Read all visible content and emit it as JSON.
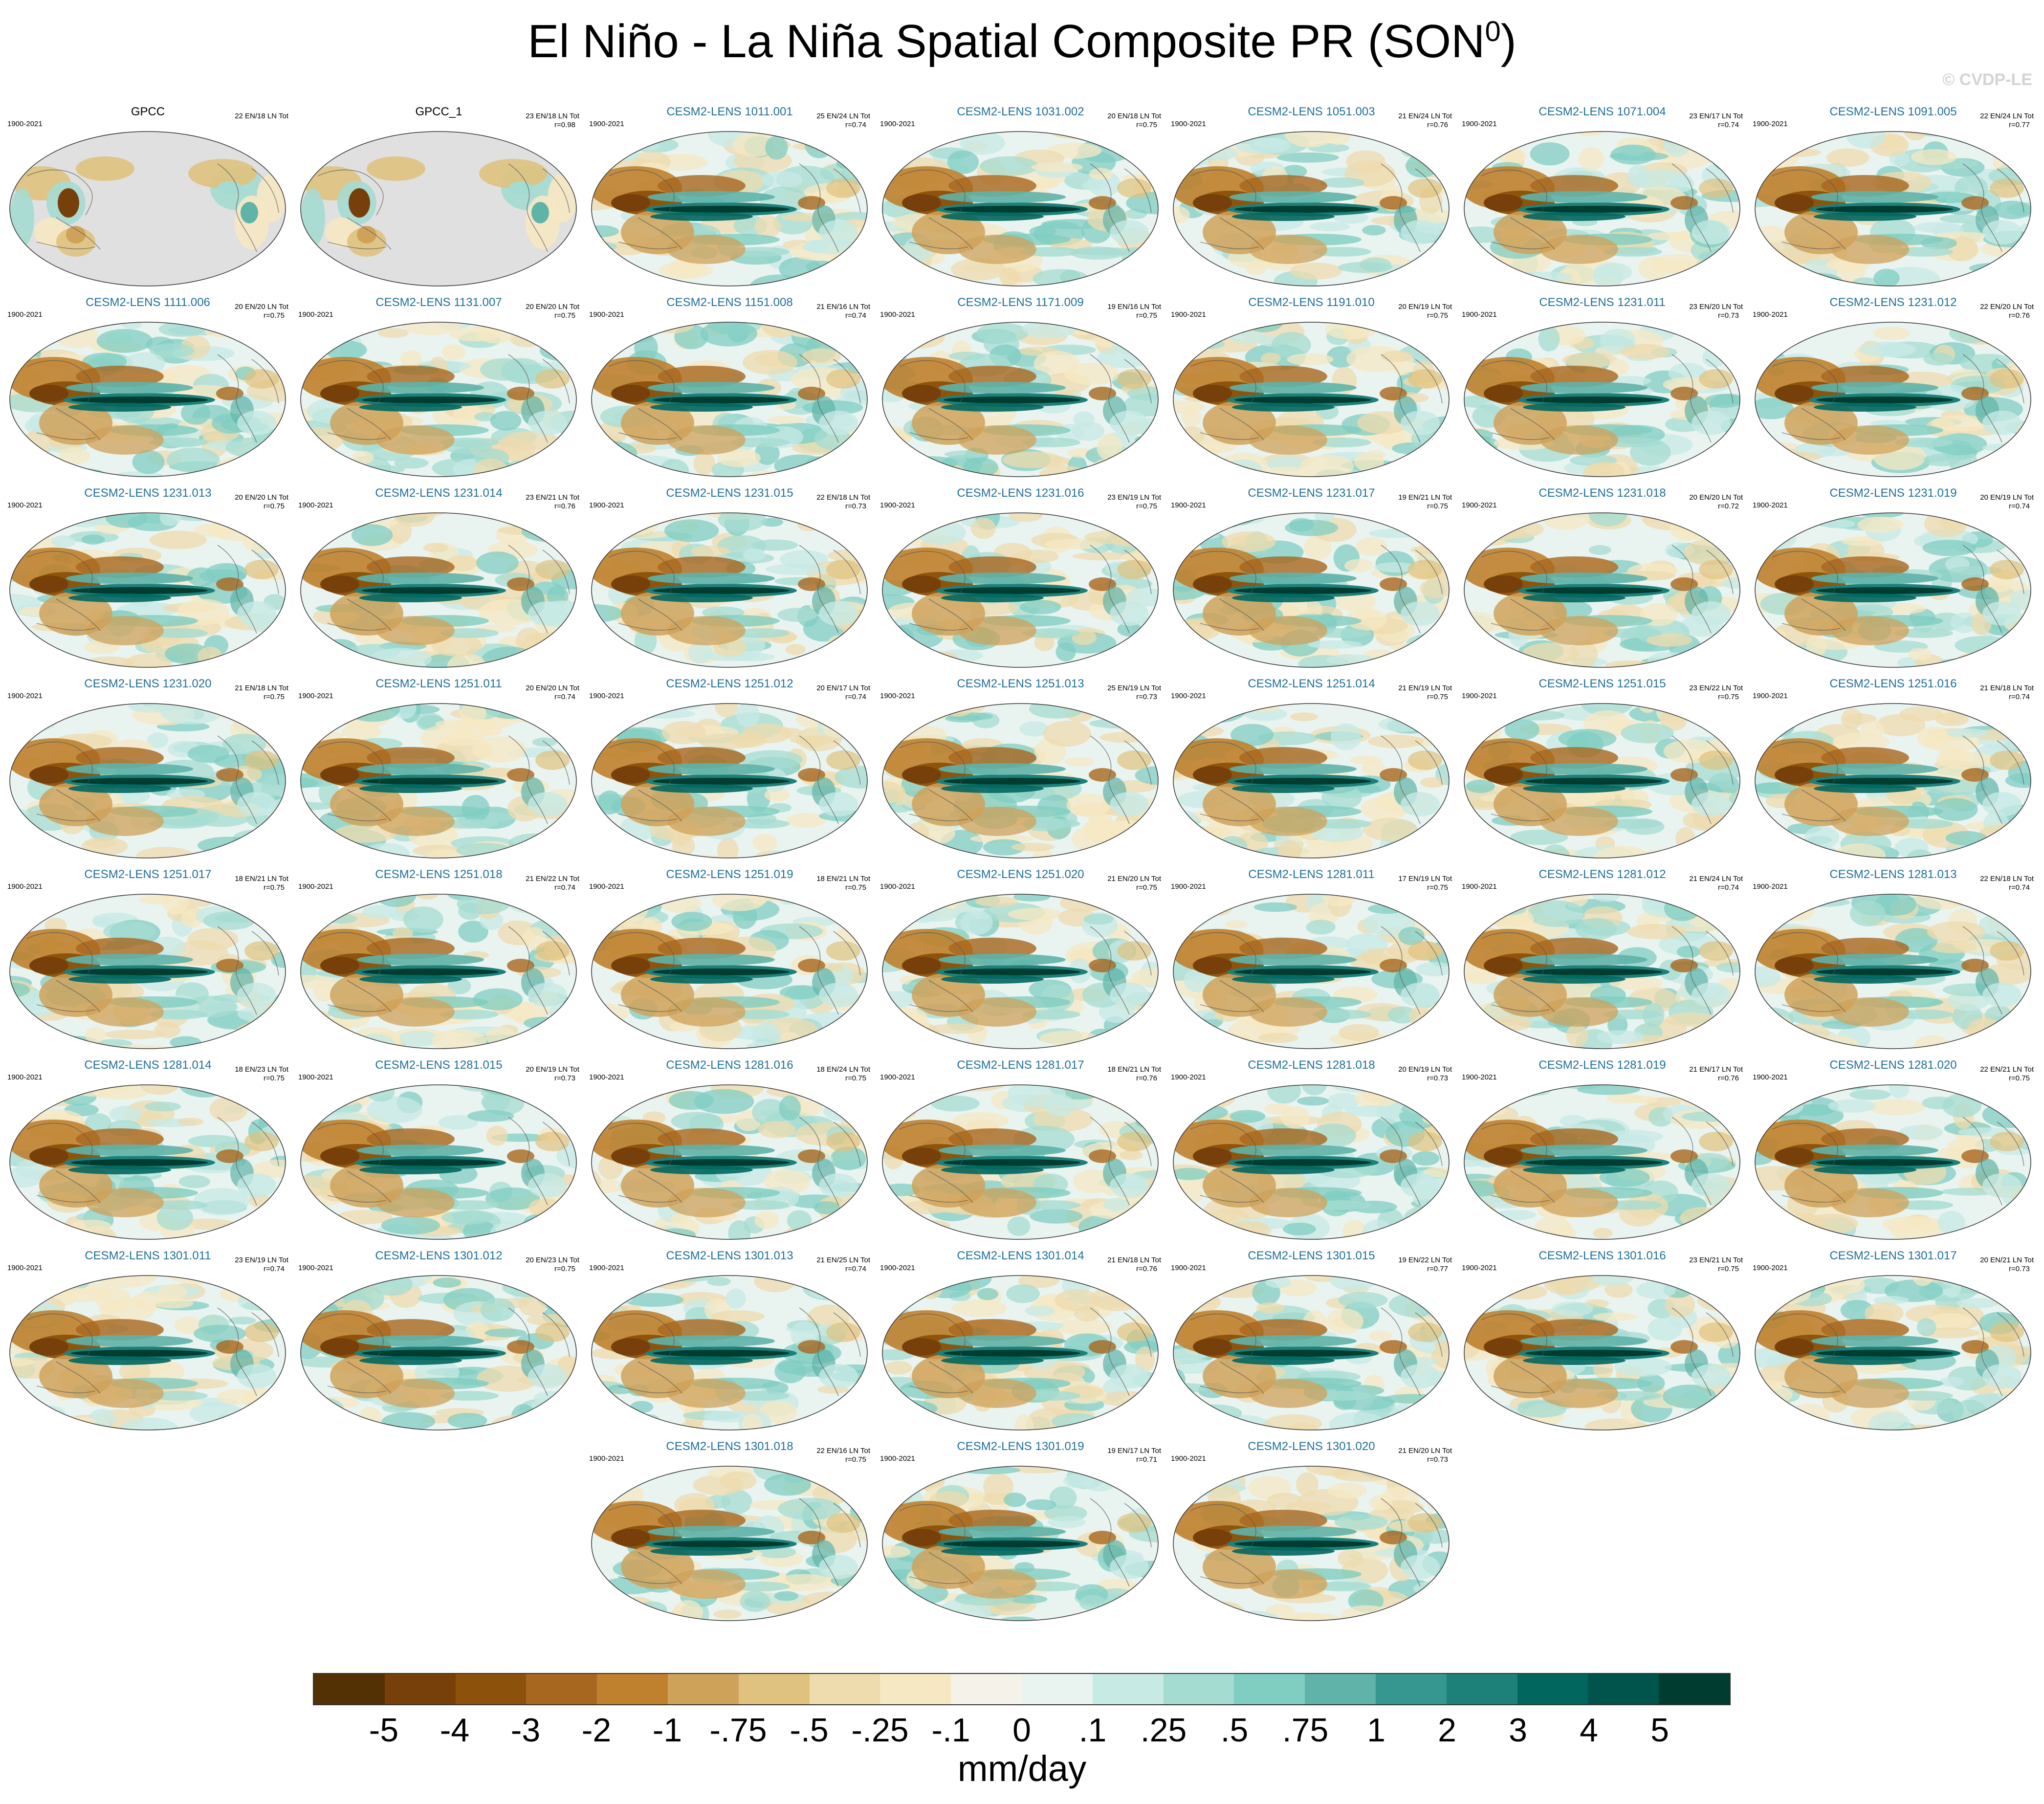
{
  "figure": {
    "title_main": "El Niño - La Niña Spatial Composite PR (SON",
    "title_sup": "0",
    "title_close": ")",
    "credit": "© CVDP-LE",
    "units": "mm/day"
  },
  "colors": {
    "model_label": "#1f6f9a",
    "obs_label": "#000000",
    "ocean_blank": "#e0e0e0",
    "coast": "#555555"
  },
  "panels": [
    {
      "name": "GPCC",
      "years": "1900-2021",
      "count": "22 EN/18 LN Tot",
      "corr": "",
      "type": "obs"
    },
    {
      "name": "GPCC_1",
      "years": "",
      "count": "23 EN/18 LN Tot",
      "corr": "r=0.98",
      "type": "obs"
    },
    {
      "name": "CESM2-LENS 1011.001",
      "years": "1900-2021",
      "count": "25 EN/24 LN Tot",
      "corr": "r=0.74",
      "type": "model"
    },
    {
      "name": "CESM2-LENS 1031.002",
      "years": "1900-2021",
      "count": "20 EN/18 LN Tot",
      "corr": "r=0.75",
      "type": "model"
    },
    {
      "name": "CESM2-LENS 1051.003",
      "years": "1900-2021",
      "count": "21 EN/24 LN Tot",
      "corr": "r=0.76",
      "type": "model"
    },
    {
      "name": "CESM2-LENS 1071.004",
      "years": "1900-2021",
      "count": "23 EN/17 LN Tot",
      "corr": "r=0.74",
      "type": "model"
    },
    {
      "name": "CESM2-LENS 1091.005",
      "years": "1900-2021",
      "count": "22 EN/24 LN Tot",
      "corr": "r=0.77",
      "type": "model"
    },
    {
      "name": "CESM2-LENS 1111.006",
      "years": "1900-2021",
      "count": "20 EN/20 LN Tot",
      "corr": "r=0.75",
      "type": "model"
    },
    {
      "name": "CESM2-LENS 1131.007",
      "years": "1900-2021",
      "count": "20 EN/20 LN Tot",
      "corr": "r=0.75",
      "type": "model"
    },
    {
      "name": "CESM2-LENS 1151.008",
      "years": "1900-2021",
      "count": "21 EN/16 LN Tot",
      "corr": "r=0.74",
      "type": "model"
    },
    {
      "name": "CESM2-LENS 1171.009",
      "years": "1900-2021",
      "count": "19 EN/16 LN Tot",
      "corr": "r=0.75",
      "type": "model"
    },
    {
      "name": "CESM2-LENS 1191.010",
      "years": "1900-2021",
      "count": "20 EN/19 LN Tot",
      "corr": "r=0.75",
      "type": "model"
    },
    {
      "name": "CESM2-LENS 1231.011",
      "years": "1900-2021",
      "count": "23 EN/20 LN Tot",
      "corr": "r=0.73",
      "type": "model"
    },
    {
      "name": "CESM2-LENS 1231.012",
      "years": "1900-2021",
      "count": "22 EN/20 LN Tot",
      "corr": "r=0.76",
      "type": "model"
    },
    {
      "name": "CESM2-LENS 1231.013",
      "years": "1900-2021",
      "count": "20 EN/20 LN Tot",
      "corr": "r=0.75",
      "type": "model"
    },
    {
      "name": "CESM2-LENS 1231.014",
      "years": "1900-2021",
      "count": "23 EN/21 LN Tot",
      "corr": "r=0.76",
      "type": "model"
    },
    {
      "name": "CESM2-LENS 1231.015",
      "years": "1900-2021",
      "count": "22 EN/18 LN Tot",
      "corr": "r=0.73",
      "type": "model"
    },
    {
      "name": "CESM2-LENS 1231.016",
      "years": "1900-2021",
      "count": "23 EN/19 LN Tot",
      "corr": "r=0.75",
      "type": "model"
    },
    {
      "name": "CESM2-LENS 1231.017",
      "years": "1900-2021",
      "count": "19 EN/21 LN Tot",
      "corr": "r=0.75",
      "type": "model"
    },
    {
      "name": "CESM2-LENS 1231.018",
      "years": "1900-2021",
      "count": "20 EN/20 LN Tot",
      "corr": "r=0.72",
      "type": "model"
    },
    {
      "name": "CESM2-LENS 1231.019",
      "years": "1900-2021",
      "count": "20 EN/19 LN Tot",
      "corr": "r=0.74",
      "type": "model"
    },
    {
      "name": "CESM2-LENS 1231.020",
      "years": "1900-2021",
      "count": "21 EN/18 LN Tot",
      "corr": "r=0.75",
      "type": "model"
    },
    {
      "name": "CESM2-LENS 1251.011",
      "years": "1900-2021",
      "count": "20 EN/20 LN Tot",
      "corr": "r=0.74",
      "type": "model"
    },
    {
      "name": "CESM2-LENS 1251.012",
      "years": "1900-2021",
      "count": "20 EN/17 LN Tot",
      "corr": "r=0.74",
      "type": "model"
    },
    {
      "name": "CESM2-LENS 1251.013",
      "years": "1900-2021",
      "count": "25 EN/19 LN Tot",
      "corr": "r=0.73",
      "type": "model"
    },
    {
      "name": "CESM2-LENS 1251.014",
      "years": "1900-2021",
      "count": "21 EN/19 LN Tot",
      "corr": "r=0.75",
      "type": "model"
    },
    {
      "name": "CESM2-LENS 1251.015",
      "years": "1900-2021",
      "count": "23 EN/22 LN Tot",
      "corr": "r=0.75",
      "type": "model"
    },
    {
      "name": "CESM2-LENS 1251.016",
      "years": "1900-2021",
      "count": "21 EN/18 LN Tot",
      "corr": "r=0.74",
      "type": "model"
    },
    {
      "name": "CESM2-LENS 1251.017",
      "years": "1900-2021",
      "count": "18 EN/21 LN Tot",
      "corr": "r=0.75",
      "type": "model"
    },
    {
      "name": "CESM2-LENS 1251.018",
      "years": "1900-2021",
      "count": "21 EN/22 LN Tot",
      "corr": "r=0.74",
      "type": "model"
    },
    {
      "name": "CESM2-LENS 1251.019",
      "years": "1900-2021",
      "count": "18 EN/21 LN Tot",
      "corr": "r=0.75",
      "type": "model"
    },
    {
      "name": "CESM2-LENS 1251.020",
      "years": "1900-2021",
      "count": "21 EN/20 LN Tot",
      "corr": "r=0.75",
      "type": "model"
    },
    {
      "name": "CESM2-LENS 1281.011",
      "years": "1900-2021",
      "count": "17 EN/19 LN Tot",
      "corr": "r=0.75",
      "type": "model"
    },
    {
      "name": "CESM2-LENS 1281.012",
      "years": "1900-2021",
      "count": "21 EN/24 LN Tot",
      "corr": "r=0.74",
      "type": "model"
    },
    {
      "name": "CESM2-LENS 1281.013",
      "years": "1900-2021",
      "count": "22 EN/18 LN Tot",
      "corr": "r=0.74",
      "type": "model"
    },
    {
      "name": "CESM2-LENS 1281.014",
      "years": "1900-2021",
      "count": "18 EN/23 LN Tot",
      "corr": "r=0.75",
      "type": "model"
    },
    {
      "name": "CESM2-LENS 1281.015",
      "years": "1900-2021",
      "count": "20 EN/19 LN Tot",
      "corr": "r=0.73",
      "type": "model"
    },
    {
      "name": "CESM2-LENS 1281.016",
      "years": "1900-2021",
      "count": "18 EN/24 LN Tot",
      "corr": "r=0.75",
      "type": "model"
    },
    {
      "name": "CESM2-LENS 1281.017",
      "years": "1900-2021",
      "count": "18 EN/21 LN Tot",
      "corr": "r=0.76",
      "type": "model"
    },
    {
      "name": "CESM2-LENS 1281.018",
      "years": "1900-2021",
      "count": "20 EN/19 LN Tot",
      "corr": "r=0.73",
      "type": "model"
    },
    {
      "name": "CESM2-LENS 1281.019",
      "years": "1900-2021",
      "count": "21 EN/17 LN Tot",
      "corr": "r=0.76",
      "type": "model"
    },
    {
      "name": "CESM2-LENS 1281.020",
      "years": "1900-2021",
      "count": "22 EN/21 LN Tot",
      "corr": "r=0.75",
      "type": "model"
    },
    {
      "name": "CESM2-LENS 1301.011",
      "years": "1900-2021",
      "count": "23 EN/19 LN Tot",
      "corr": "r=0.74",
      "type": "model"
    },
    {
      "name": "CESM2-LENS 1301.012",
      "years": "1900-2021",
      "count": "20 EN/23 LN Tot",
      "corr": "r=0.75",
      "type": "model"
    },
    {
      "name": "CESM2-LENS 1301.013",
      "years": "1900-2021",
      "count": "21 EN/25 LN Tot",
      "corr": "r=0.74",
      "type": "model"
    },
    {
      "name": "CESM2-LENS 1301.014",
      "years": "1900-2021",
      "count": "21 EN/18 LN Tot",
      "corr": "r=0.76",
      "type": "model"
    },
    {
      "name": "CESM2-LENS 1301.015",
      "years": "1900-2021",
      "count": "19 EN/22 LN Tot",
      "corr": "r=0.77",
      "type": "model"
    },
    {
      "name": "CESM2-LENS 1301.016",
      "years": "1900-2021",
      "count": "23 EN/21 LN Tot",
      "corr": "r=0.75",
      "type": "model"
    },
    {
      "name": "CESM2-LENS 1301.017",
      "years": "1900-2021",
      "count": "20 EN/21 LN Tot",
      "corr": "r=0.73",
      "type": "model"
    },
    {
      "name": "CESM2-LENS 1301.018",
      "years": "1900-2021",
      "count": "22 EN/16 LN Tot",
      "corr": "r=0.75",
      "type": "model"
    },
    {
      "name": "CESM2-LENS 1301.019",
      "years": "1900-2021",
      "count": "19 EN/17 LN Tot",
      "corr": "r=0.71",
      "type": "model"
    },
    {
      "name": "CESM2-LENS 1301.020",
      "years": "1900-2021",
      "count": "21 EN/20 LN Tot",
      "corr": "r=0.73",
      "type": "model"
    }
  ],
  "colorbar": {
    "colors": [
      "#543005",
      "#77400a",
      "#8c510a",
      "#a8671e",
      "#bf812d",
      "#cfa25a",
      "#dfc27d",
      "#eedbae",
      "#f6e8c3",
      "#f5f2e9",
      "#e9f4f1",
      "#c7eae5",
      "#a5dcd2",
      "#80cdc1",
      "#5fb3a8",
      "#35978f",
      "#1d8079",
      "#01665e",
      "#00544b",
      "#003c30"
    ],
    "labels": [
      "-5",
      "-4",
      "-3",
      "-2",
      "-1",
      "-.75",
      "-.5",
      "-.25",
      "-.1",
      "0",
      ".1",
      ".25",
      ".5",
      ".75",
      "1",
      "2",
      "3",
      "4",
      "5"
    ]
  }
}
